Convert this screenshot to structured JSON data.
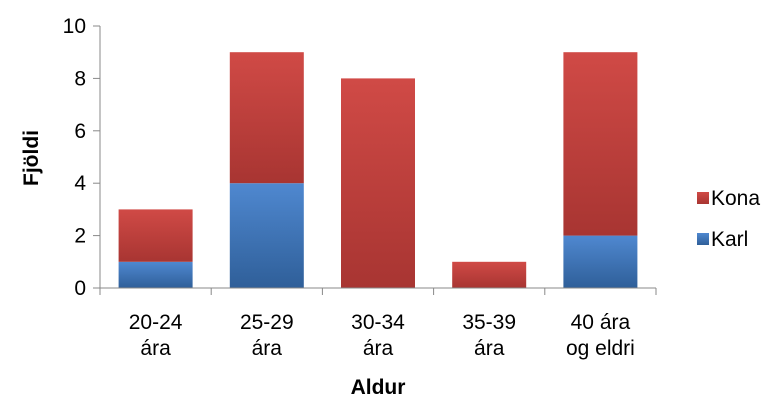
{
  "chart_data": {
    "type": "bar",
    "stacked": true,
    "categories": [
      [
        "20-24",
        "ára"
      ],
      [
        "25-29",
        "ára"
      ],
      [
        "30-34",
        "ára"
      ],
      [
        "35-39",
        "ára"
      ],
      [
        "40 ára",
        "og eldri"
      ]
    ],
    "series": [
      {
        "name": "Karl",
        "color": "#4a7ebb",
        "values": [
          1,
          4,
          0,
          0,
          2
        ]
      },
      {
        "name": "Kona",
        "color": "#be4b48",
        "values": [
          2,
          5,
          8,
          1,
          7
        ]
      }
    ],
    "xlabel": "Aldur",
    "ylabel": "Fjöldi",
    "ylim": [
      0,
      10
    ],
    "yticks": [
      0,
      2,
      4,
      6,
      8,
      10
    ],
    "grid": false,
    "legend": "right",
    "legend_order": [
      "Kona",
      "Karl"
    ]
  }
}
